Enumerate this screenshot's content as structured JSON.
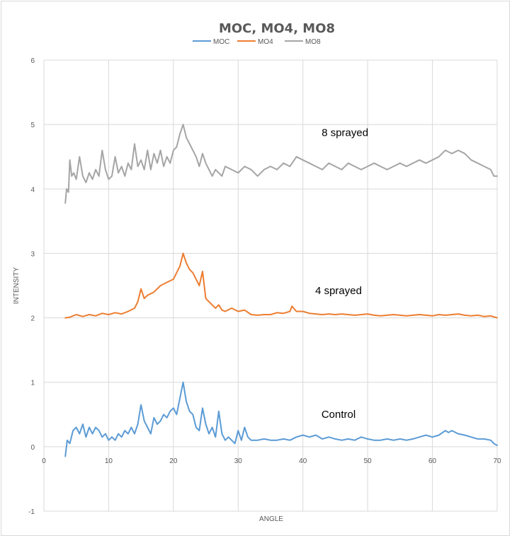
{
  "chart_data": {
    "type": "line",
    "title": "MOC, MO4, MO8",
    "xlabel": "ANGLE",
    "ylabel": "INTENSITY",
    "xlim": [
      0,
      70
    ],
    "ylim": [
      -1,
      6
    ],
    "x_ticks": [
      "0",
      "10",
      "20",
      "30",
      "40",
      "50",
      "60",
      "70"
    ],
    "y_ticks": [
      "-1",
      "0",
      "1",
      "2",
      "3",
      "4",
      "5",
      "6"
    ],
    "grid": true,
    "legend_position": "top",
    "series": [
      {
        "name": "MOC",
        "color": "#5b9bd5",
        "x": [
          3.3,
          3.6,
          4,
          4.5,
          5,
          5.5,
          6,
          6.5,
          7,
          7.5,
          8,
          8.5,
          9,
          9.5,
          10,
          10.5,
          11,
          11.5,
          12,
          12.5,
          13,
          13.5,
          14,
          14.5,
          15,
          15.5,
          16,
          16.5,
          17,
          17.5,
          18,
          18.5,
          19,
          19.5,
          20,
          20.5,
          21,
          21.5,
          22,
          22.5,
          23,
          23.5,
          24,
          24.5,
          25,
          25.5,
          26,
          26.5,
          27,
          27.5,
          28,
          28.5,
          29,
          29.5,
          30,
          30.5,
          31,
          31.5,
          32,
          33,
          34,
          35,
          36,
          37,
          38,
          39,
          40,
          41,
          42,
          43,
          44,
          45,
          46,
          47,
          48,
          49,
          50,
          51,
          52,
          53,
          54,
          55,
          56,
          57,
          58,
          59,
          60,
          61,
          62,
          62.5,
          63,
          64,
          65,
          66,
          67,
          68,
          69,
          69.5,
          70
        ],
        "values": [
          -0.15,
          0.1,
          0.05,
          0.25,
          0.3,
          0.2,
          0.35,
          0.15,
          0.3,
          0.2,
          0.3,
          0.25,
          0.15,
          0.2,
          0.1,
          0.15,
          0.1,
          0.2,
          0.15,
          0.25,
          0.2,
          0.3,
          0.2,
          0.35,
          0.65,
          0.4,
          0.3,
          0.2,
          0.45,
          0.35,
          0.4,
          0.5,
          0.45,
          0.55,
          0.6,
          0.5,
          0.75,
          1.0,
          0.7,
          0.55,
          0.5,
          0.3,
          0.25,
          0.6,
          0.35,
          0.2,
          0.3,
          0.15,
          0.55,
          0.2,
          0.1,
          0.15,
          0.1,
          0.05,
          0.25,
          0.1,
          0.3,
          0.15,
          0.1,
          0.1,
          0.12,
          0.1,
          0.1,
          0.12,
          0.1,
          0.15,
          0.18,
          0.15,
          0.18,
          0.12,
          0.15,
          0.12,
          0.1,
          0.12,
          0.1,
          0.15,
          0.12,
          0.1,
          0.1,
          0.12,
          0.1,
          0.12,
          0.1,
          0.12,
          0.15,
          0.18,
          0.15,
          0.18,
          0.25,
          0.22,
          0.25,
          0.2,
          0.18,
          0.15,
          0.12,
          0.12,
          0.1,
          0.05,
          0.02
        ]
      },
      {
        "name": "MO4",
        "color": "#ed7d31",
        "x": [
          3.3,
          4,
          5,
          6,
          7,
          8,
          9,
          10,
          11,
          12,
          13,
          14,
          14.5,
          15,
          15.5,
          16,
          17,
          18,
          19,
          20,
          20.5,
          21,
          21.5,
          22,
          22.5,
          23,
          23.5,
          24,
          24.5,
          25,
          25.5,
          26,
          26.5,
          27,
          27.5,
          28,
          29,
          30,
          31,
          32,
          33,
          34,
          35,
          36,
          37,
          38,
          38.3,
          39,
          40,
          41,
          42,
          43,
          44,
          45,
          46,
          47,
          48,
          49,
          50,
          51,
          52,
          53,
          54,
          55,
          56,
          57,
          58,
          59,
          60,
          61,
          62,
          63,
          64,
          65,
          66,
          67,
          68,
          69,
          70
        ],
        "values": [
          2.0,
          2.01,
          2.05,
          2.02,
          2.05,
          2.03,
          2.07,
          2.05,
          2.08,
          2.06,
          2.1,
          2.15,
          2.25,
          2.45,
          2.3,
          2.35,
          2.4,
          2.5,
          2.55,
          2.6,
          2.7,
          2.8,
          3.0,
          2.85,
          2.75,
          2.7,
          2.6,
          2.5,
          2.72,
          2.3,
          2.25,
          2.2,
          2.15,
          2.2,
          2.12,
          2.1,
          2.15,
          2.1,
          2.12,
          2.05,
          2.04,
          2.05,
          2.05,
          2.08,
          2.07,
          2.1,
          2.18,
          2.1,
          2.1,
          2.07,
          2.06,
          2.05,
          2.06,
          2.05,
          2.06,
          2.05,
          2.04,
          2.05,
          2.06,
          2.04,
          2.03,
          2.04,
          2.05,
          2.04,
          2.03,
          2.04,
          2.05,
          2.04,
          2.03,
          2.05,
          2.04,
          2.05,
          2.06,
          2.04,
          2.03,
          2.04,
          2.02,
          2.03,
          2.0
        ]
      },
      {
        "name": "MO8",
        "color": "#a5a5a5",
        "x": [
          3.3,
          3.5,
          3.8,
          4,
          4.3,
          4.6,
          5,
          5.5,
          6,
          6.5,
          7,
          7.5,
          8,
          8.5,
          9,
          9.5,
          10,
          10.5,
          11,
          11.5,
          12,
          12.5,
          13,
          13.5,
          14,
          14.5,
          15,
          15.5,
          16,
          16.5,
          17,
          17.5,
          18,
          18.5,
          19,
          19.5,
          20,
          20.5,
          21,
          21.5,
          22,
          22.5,
          23,
          23.5,
          24,
          24.5,
          25,
          25.5,
          26,
          26.5,
          27,
          27.5,
          28,
          29,
          30,
          31,
          32,
          33,
          34,
          35,
          36,
          37,
          38,
          39,
          40,
          41,
          42,
          43,
          44,
          45,
          46,
          47,
          48,
          49,
          50,
          51,
          52,
          53,
          54,
          55,
          56,
          57,
          58,
          59,
          60,
          61,
          62,
          63,
          64,
          65,
          66,
          67,
          68,
          69,
          69.5,
          70
        ],
        "values": [
          3.78,
          4.0,
          3.95,
          4.45,
          4.2,
          4.25,
          4.15,
          4.5,
          4.2,
          4.1,
          4.25,
          4.15,
          4.3,
          4.2,
          4.6,
          4.3,
          4.15,
          4.2,
          4.5,
          4.25,
          4.35,
          4.2,
          4.4,
          4.3,
          4.7,
          4.35,
          4.45,
          4.3,
          4.6,
          4.3,
          4.55,
          4.4,
          4.6,
          4.35,
          4.5,
          4.4,
          4.6,
          4.65,
          4.85,
          5.0,
          4.8,
          4.7,
          4.6,
          4.5,
          4.35,
          4.55,
          4.4,
          4.3,
          4.2,
          4.3,
          4.25,
          4.2,
          4.35,
          4.3,
          4.25,
          4.35,
          4.3,
          4.2,
          4.3,
          4.35,
          4.3,
          4.4,
          4.35,
          4.5,
          4.45,
          4.4,
          4.35,
          4.3,
          4.4,
          4.35,
          4.3,
          4.4,
          4.35,
          4.3,
          4.35,
          4.4,
          4.35,
          4.3,
          4.35,
          4.4,
          4.35,
          4.4,
          4.45,
          4.4,
          4.45,
          4.5,
          4.6,
          4.55,
          4.6,
          4.55,
          4.45,
          4.4,
          4.35,
          4.3,
          4.2,
          4.2
        ]
      }
    ],
    "annotations": [
      {
        "text": "8 sprayed",
        "x": 46.5,
        "y": 4.82
      },
      {
        "text": "4 sprayed",
        "x": 45.5,
        "y": 2.37
      },
      {
        "text": "Control",
        "x": 45.5,
        "y": 0.45
      }
    ]
  }
}
